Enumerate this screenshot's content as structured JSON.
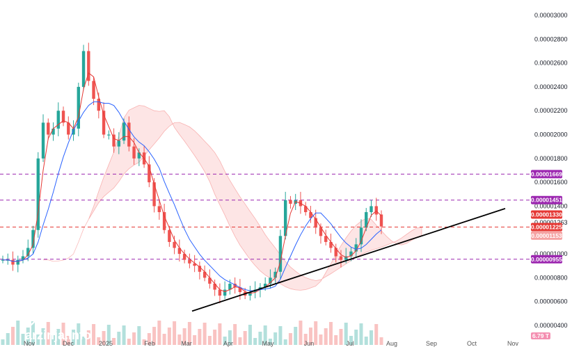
{
  "brand": {
    "name": "ARZINJA",
    "url": "arzinja.info"
  },
  "chart_data": {
    "type": "candlestick",
    "title": "",
    "xlabel": "",
    "ylabel": "",
    "ylim": [
      3.5e-06,
      3.1e-06
    ],
    "y_ticks": [
      {
        "label": "0.00003000",
        "value": 3e-05
      },
      {
        "label": "0.00002800",
        "value": 2.8e-05
      },
      {
        "label": "0.00002600",
        "value": 2.6e-05
      },
      {
        "label": "0.00002400",
        "value": 2.4e-05
      },
      {
        "label": "0.00002200",
        "value": 2.2e-05
      },
      {
        "label": "0.00002000",
        "value": 2e-05
      },
      {
        "label": "0.00001800",
        "value": 1.8e-05
      },
      {
        "label": "0.00001600",
        "value": 1.6e-05
      },
      {
        "label": "0.00001400",
        "value": 1.4e-05
      },
      {
        "label": "0.00001263",
        "value": 1.263e-05
      },
      {
        "label": "0.00001000",
        "value": 1e-05
      },
      {
        "label": "0.00000800",
        "value": 8e-06
      },
      {
        "label": "0.00000600",
        "value": 6e-06
      },
      {
        "label": "0.00000400",
        "value": 4e-06
      }
    ],
    "x_ticks": [
      "Nov",
      "Dec",
      "2025",
      "Feb",
      "Mar",
      "Apr",
      "May",
      "Jun",
      "Jul",
      "Aug",
      "Sep",
      "Oct",
      "Nov"
    ],
    "levels": [
      {
        "label": "0.00001669",
        "value": 1.669e-05,
        "color": "#9c27b0",
        "dashed": true
      },
      {
        "label": "0.00001451",
        "value": 1.451e-05,
        "color": "#9c27b0",
        "dashed": true
      },
      {
        "label": "0.00001330",
        "value": 1.33e-05,
        "color": "#e53935",
        "dashed": false
      },
      {
        "label": "0.00001225",
        "value": 1.225e-05,
        "color": "#e53935",
        "dashed": true
      },
      {
        "label": "0.00001153",
        "value": 1.153e-05,
        "color": "#f5a3a3",
        "dashed": false
      },
      {
        "label": "0.00000955",
        "value": 9.55e-06,
        "color": "#9c27b0",
        "dashed": true
      }
    ],
    "volume_label": "6.79 T",
    "trendline": {
      "from": [
        "Mar",
        5.2e-06
      ],
      "to": [
        "Nov",
        1.38e-05
      ]
    },
    "series": [
      {
        "name": "price",
        "values": [
          9.5e-06,
          9.5e-06,
          9.1e-06,
          9.5e-06,
          9.8e-06,
          1.05e-05,
          1.2e-05,
          1.8e-05,
          2.1e-05,
          2e-05,
          2.05e-05,
          2.2e-05,
          2.1e-05,
          2e-05,
          2.05e-05,
          2.4e-05,
          2.7e-05,
          2.45e-05,
          2.3e-05,
          2.2e-05,
          2e-05,
          2e-05,
          1.9e-05,
          1.95e-05,
          2.1e-05,
          1.9e-05,
          1.8e-05,
          1.85e-05,
          1.75e-05,
          1.6e-05,
          1.4e-05,
          1.35e-05,
          1.2e-05,
          1.1e-05,
          1.05e-05,
          1e-05,
          9.5e-06,
          9.2e-06,
          9e-06,
          8.5e-06,
          8e-06,
          7.5e-06,
          7e-06,
          6.5e-06,
          7e-06,
          7.5e-06,
          7.2e-06,
          6.8e-06,
          6.5e-06,
          6.8e-06,
          7e-06,
          7.2e-06,
          7.5e-06,
          8e-06,
          8.5e-06,
          1.15e-05,
          1.45e-05,
          1.42e-05,
          1.45e-05,
          1.4e-05,
          1.35e-05,
          1.3e-05,
          1.22e-05,
          1.15e-05,
          1.1e-05,
          1.05e-05,
          9.8e-06,
          9.5e-06,
          9.8e-06,
          1.02e-05,
          1.08e-05,
          1.22e-05,
          1.35e-05,
          1.4e-05,
          1.33e-05,
          1.23e-05
        ]
      }
    ]
  }
}
